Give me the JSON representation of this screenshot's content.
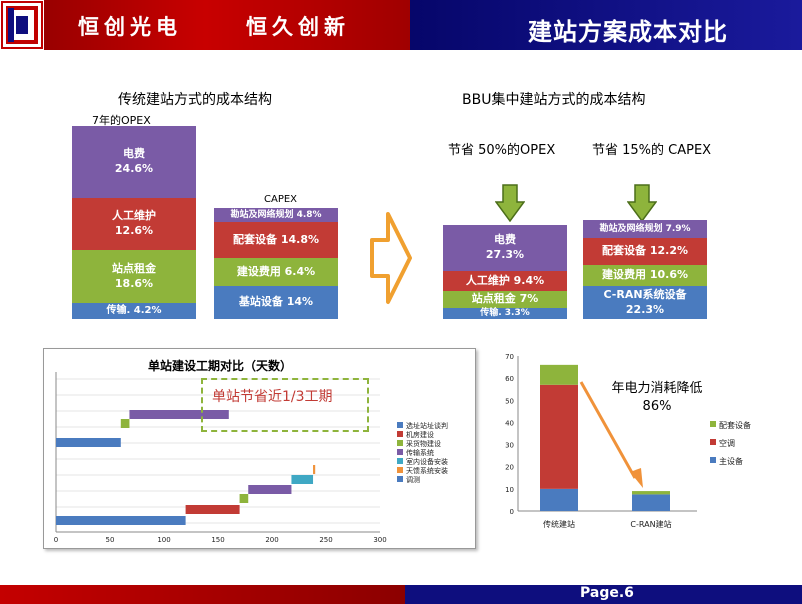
{
  "header": {
    "company": "恒创光电",
    "slogan": "恒久创新",
    "title": "建站方案成本对比"
  },
  "footer": {
    "page": "Page.6"
  },
  "left_section": {
    "title": "传统建站方式的成本结构",
    "opex_label": "7年的OPEX",
    "capex_label": "CAPEX"
  },
  "right_section": {
    "title": "BBU集中建站方式的成本结构",
    "opex_saving": "节省 50%的OPEX",
    "capex_saving": "节省 15%的 CAPEX"
  },
  "charts_text": {
    "gantt_note": "单站节省近1/3工期",
    "power_note_line1": "年电力消耗降低",
    "power_note_line2": "86%"
  },
  "chart_data": [
    {
      "type": "bar",
      "stacked": true,
      "name": "传统 OPEX",
      "series": [
        {
          "name": "传输",
          "label": "传输. 4.2%",
          "value": 4.2,
          "color": "#4a7bbf"
        },
        {
          "name": "站点租金",
          "label": "站点租金",
          "value": 18.6,
          "value_label": "18.6%",
          "color": "#8eb43c"
        },
        {
          "name": "人工维护",
          "label": "人工维护",
          "value": 12.6,
          "value_label": "12.6%",
          "color": "#c23b35"
        },
        {
          "name": "电费",
          "label": "电费",
          "value": 24.6,
          "value_label": "24.6%",
          "color": "#7a5ba6"
        }
      ]
    },
    {
      "type": "bar",
      "stacked": true,
      "name": "传统 CAPEX",
      "series": [
        {
          "name": "基站设备",
          "label": "基站设备 14%",
          "value": 14,
          "color": "#4a7bbf"
        },
        {
          "name": "建设费用",
          "label": "建设费用 6.4%",
          "value": 6.4,
          "color": "#8eb43c"
        },
        {
          "name": "配套设备",
          "label": "配套设备 14.8%",
          "value": 14.8,
          "color": "#c23b35"
        },
        {
          "name": "勘站及网络规划",
          "label": "勘站及网络规划 4.8%",
          "value": 4.8,
          "color": "#7a5ba6"
        }
      ]
    },
    {
      "type": "bar",
      "stacked": true,
      "name": "BBU OPEX",
      "series": [
        {
          "name": "传输",
          "label": "传输. 3.3%",
          "value": 3.3,
          "color": "#4a7bbf"
        },
        {
          "name": "站点租金",
          "label": "站点租金 7%",
          "value": 7,
          "color": "#8eb43c"
        },
        {
          "name": "人工维护",
          "label": "人工维护 9.4%",
          "value": 9.4,
          "color": "#c23b35"
        },
        {
          "name": "电费",
          "label": "电费",
          "value": 27.3,
          "value_label": "27.3%",
          "color": "#7a5ba6"
        }
      ]
    },
    {
      "type": "bar",
      "stacked": true,
      "name": "BBU CAPEX",
      "series": [
        {
          "name": "C-RAN系统设备",
          "label": "C-RAN系统设备",
          "value": 22.3,
          "value_label": "22.3%",
          "color": "#4a7bbf"
        },
        {
          "name": "建设费用",
          "label": "建设费用 10.6%",
          "value": 10.6,
          "color": "#8eb43c"
        },
        {
          "name": "配套设备",
          "label": "配套设备 12.2%",
          "value": 12.2,
          "color": "#c23b35"
        },
        {
          "name": "勘站及网络规划",
          "label": "勘站及网络规划 7.9%",
          "value": 7.9,
          "color": "#7a5ba6"
        }
      ]
    },
    {
      "type": "bar",
      "orientation": "horizontal",
      "name": "gantt",
      "title": "单站建设工期对比（天数）",
      "xlim": [
        0,
        300
      ],
      "xticks": [
        0,
        50,
        100,
        150,
        200,
        250,
        300
      ],
      "legend": [
        "选址站址谈判",
        "机房建设",
        "采货物建设",
        "传输系统",
        "室内设备安装",
        "天馈系统安装",
        "调测"
      ],
      "legend_colors": [
        "#4a7bbf",
        "#c23b35",
        "#8eb43c",
        "#7a5ba6",
        "#3fa8c4",
        "#f0923a",
        "#4a7bbf"
      ],
      "rows": [
        {
          "row": 0,
          "start": 0,
          "end": 120,
          "task": "选址站址谈判"
        },
        {
          "row": 0,
          "start": 120,
          "end": 170,
          "task": "机房建设"
        },
        {
          "row": 0,
          "start": 170,
          "end": 178,
          "task": "采货物建设"
        },
        {
          "row": 0,
          "start": 178,
          "end": 218,
          "task": "传输系统"
        },
        {
          "row": 0,
          "start": 218,
          "end": 238,
          "task": "室内设备安装"
        },
        {
          "row": 0,
          "start": 238,
          "end": 240,
          "task": "天馈系统安装"
        },
        {
          "row": 1,
          "start": 0,
          "end": 60,
          "task": "选址站址谈判"
        },
        {
          "row": 1,
          "start": 60,
          "end": 68,
          "task": "采货物建设"
        },
        {
          "row": 1,
          "start": 68,
          "end": 160,
          "task": "传输系统"
        }
      ]
    },
    {
      "type": "bar",
      "stacked": true,
      "name": "power",
      "categories": [
        "传统建站",
        "C-RAN建站"
      ],
      "ylim": [
        0,
        70
      ],
      "yticks": [
        0,
        10,
        20,
        30,
        40,
        50,
        60,
        70
      ],
      "series": [
        {
          "name": "主设备",
          "values": [
            10,
            7.5
          ],
          "color": "#4a7bbf"
        },
        {
          "name": "空调",
          "values": [
            47,
            0
          ],
          "color": "#c23b35"
        },
        {
          "name": "配套设备",
          "values": [
            9,
            1.5
          ],
          "color": "#8eb43c"
        }
      ]
    }
  ]
}
